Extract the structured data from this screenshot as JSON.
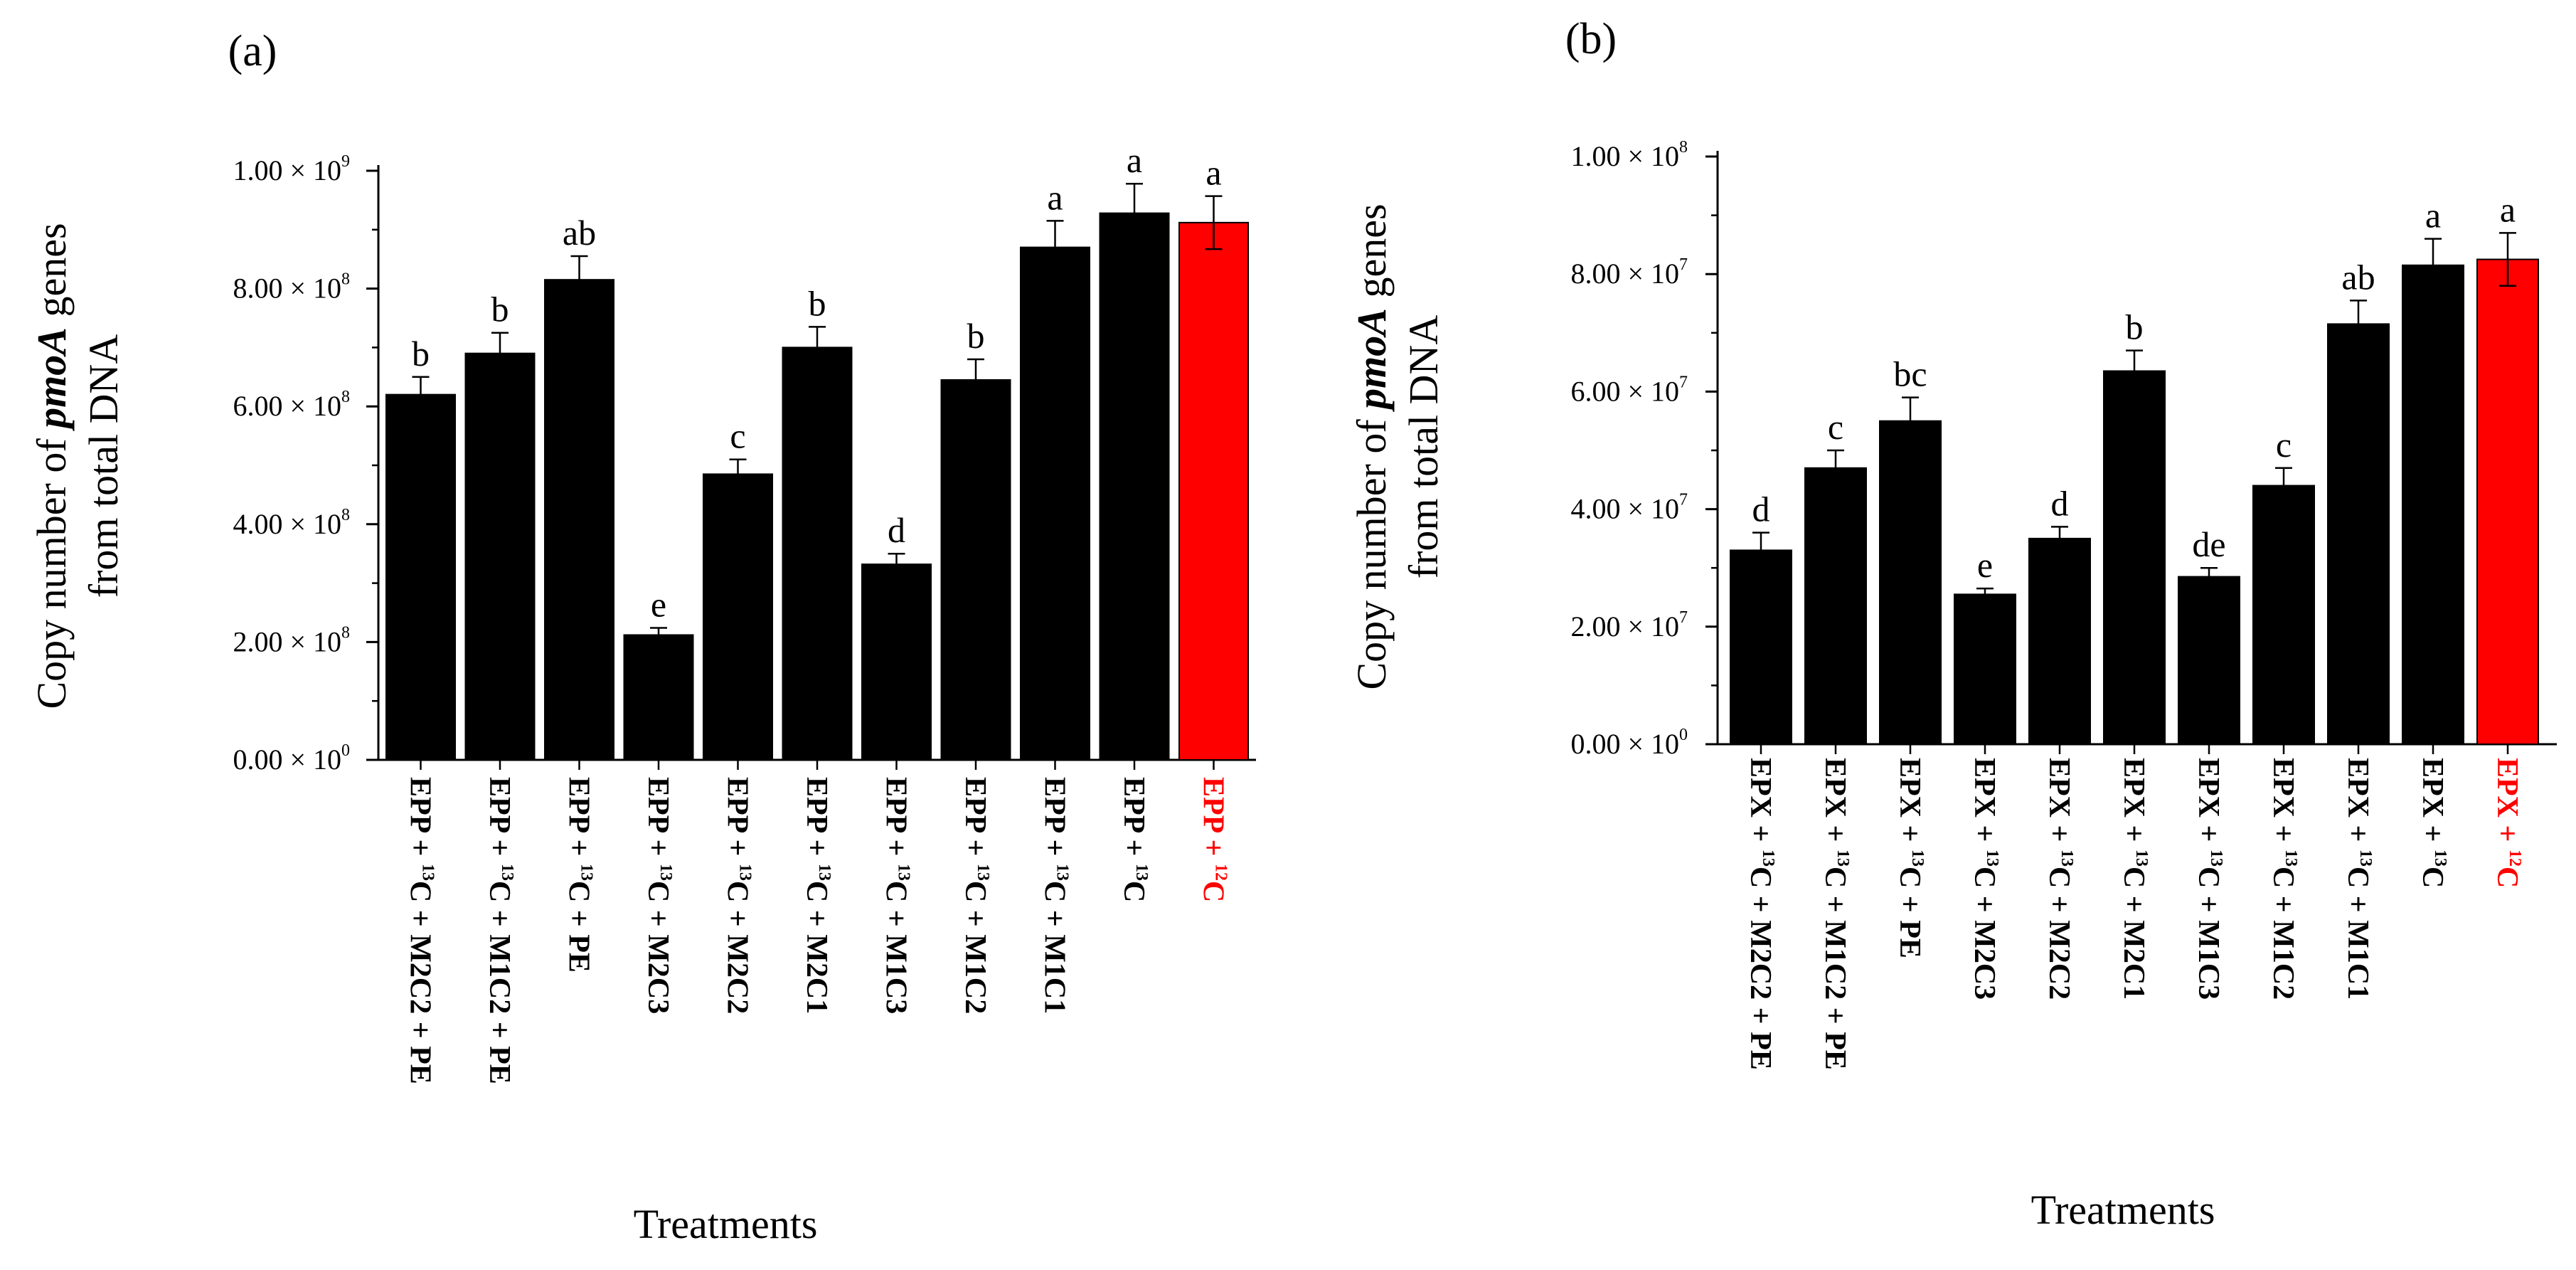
{
  "chart_data": [
    {
      "type": "bar",
      "panel_label": "(a)",
      "ylabel_line1_pre": "Copy number of ",
      "ylabel_line1_italic": "pmoA",
      "ylabel_line1_post": " genes",
      "ylabel_line2": "from total DNA",
      "xlabel": "Treatments",
      "ylim": [
        0,
        1000000000
      ],
      "yticks": [
        {
          "value": 0,
          "label": "0.00 × 10",
          "exp": "0"
        },
        {
          "value": 200000000,
          "label": "2.00 × 10",
          "exp": "8"
        },
        {
          "value": 400000000,
          "label": "4.00 × 10",
          "exp": "8"
        },
        {
          "value": 600000000,
          "label": "6.00 × 10",
          "exp": "8"
        },
        {
          "value": 800000000,
          "label": "8.00 × 10",
          "exp": "8"
        },
        {
          "value": 1000000000,
          "label": "1.00 × 10",
          "exp": "9"
        }
      ],
      "categories": [
        {
          "parts": [
            "EPP + ",
            "13",
            "C + M2C2 + PE"
          ]
        },
        {
          "parts": [
            "EPP + ",
            "13",
            "C + M1C2 + PE"
          ]
        },
        {
          "parts": [
            "EPP + ",
            "13",
            "C + PE"
          ]
        },
        {
          "parts": [
            "EPP + ",
            "13",
            "C + M2C3"
          ]
        },
        {
          "parts": [
            "EPP + ",
            "13",
            "C + M2C2"
          ]
        },
        {
          "parts": [
            "EPP + ",
            "13",
            "C + M2C1"
          ]
        },
        {
          "parts": [
            "EPP + ",
            "13",
            "C + M1C3"
          ]
        },
        {
          "parts": [
            "EPP + ",
            "13",
            "C + M1C2"
          ]
        },
        {
          "parts": [
            "EPP + ",
            "13",
            "C + M1C1"
          ]
        },
        {
          "parts": [
            "EPP + ",
            "13",
            "C"
          ]
        },
        {
          "parts": [
            "EPP + ",
            "12",
            "C"
          ]
        }
      ],
      "values": [
        620000000,
        690000000,
        815000000,
        212000000,
        485000000,
        700000000,
        332000000,
        645000000,
        870000000,
        928000000,
        912000000
      ],
      "errors": [
        30000000,
        35000000,
        40000000,
        12000000,
        25000000,
        35000000,
        18000000,
        35000000,
        45000000,
        50000000,
        45000000
      ],
      "significance": [
        "b",
        "b",
        "ab",
        "e",
        "c",
        "b",
        "d",
        "b",
        "a",
        "a",
        "a"
      ],
      "bar_colors": [
        "#000000",
        "#000000",
        "#000000",
        "#000000",
        "#000000",
        "#000000",
        "#000000",
        "#000000",
        "#000000",
        "#000000",
        "#ff0000"
      ],
      "label_colors": [
        "#000000",
        "#000000",
        "#000000",
        "#000000",
        "#000000",
        "#000000",
        "#000000",
        "#000000",
        "#000000",
        "#000000",
        "#ff0000"
      ]
    },
    {
      "type": "bar",
      "panel_label": "(b)",
      "ylabel_line1_pre": "Copy number of ",
      "ylabel_line1_italic": "pmoA",
      "ylabel_line1_post": " genes",
      "ylabel_line2": "from total DNA",
      "xlabel": "Treatments",
      "ylim": [
        0,
        100000000
      ],
      "yticks": [
        {
          "value": 0,
          "label": "0.00 × 10",
          "exp": "0"
        },
        {
          "value": 20000000,
          "label": "2.00 × 10",
          "exp": "7"
        },
        {
          "value": 40000000,
          "label": "4.00 × 10",
          "exp": "7"
        },
        {
          "value": 60000000,
          "label": "6.00 × 10",
          "exp": "7"
        },
        {
          "value": 80000000,
          "label": "8.00 × 10",
          "exp": "7"
        },
        {
          "value": 100000000,
          "label": "1.00 × 10",
          "exp": "8"
        }
      ],
      "categories": [
        {
          "parts": [
            "EPX + ",
            "13",
            "C + M2C2 + PE"
          ]
        },
        {
          "parts": [
            "EPX + ",
            "13",
            "C + M1C2 + PE"
          ]
        },
        {
          "parts": [
            "EPX + ",
            "13",
            "C + PE"
          ]
        },
        {
          "parts": [
            "EPX + ",
            "13",
            "C + M2C3"
          ]
        },
        {
          "parts": [
            "EPX + ",
            "13",
            "C + M2C2"
          ]
        },
        {
          "parts": [
            "EPX + ",
            "13",
            "C + M2C1"
          ]
        },
        {
          "parts": [
            "EPX + ",
            "13",
            "C + M1C3"
          ]
        },
        {
          "parts": [
            "EPX + ",
            "13",
            "C + M1C2"
          ]
        },
        {
          "parts": [
            "EPX + ",
            "13",
            "C + M1C1"
          ]
        },
        {
          "parts": [
            "EPX + ",
            "13",
            "C"
          ]
        },
        {
          "parts": [
            "EPX + ",
            "12",
            "C"
          ]
        }
      ],
      "values": [
        33000000,
        47000000,
        55000000,
        25500000,
        35000000,
        63500000,
        28500000,
        44000000,
        71500000,
        81500000,
        82500000
      ],
      "errors": [
        3000000,
        3000000,
        4000000,
        1000000,
        2000000,
        3500000,
        1500000,
        3000000,
        4000000,
        4500000,
        4500000
      ],
      "significance": [
        "d",
        "c",
        "bc",
        "e",
        "d",
        "b",
        "de",
        "c",
        "ab",
        "a",
        "a"
      ],
      "bar_colors": [
        "#000000",
        "#000000",
        "#000000",
        "#000000",
        "#000000",
        "#000000",
        "#000000",
        "#000000",
        "#000000",
        "#000000",
        "#ff0000"
      ],
      "label_colors": [
        "#000000",
        "#000000",
        "#000000",
        "#000000",
        "#000000",
        "#000000",
        "#000000",
        "#000000",
        "#000000",
        "#000000",
        "#ff0000"
      ]
    }
  ]
}
